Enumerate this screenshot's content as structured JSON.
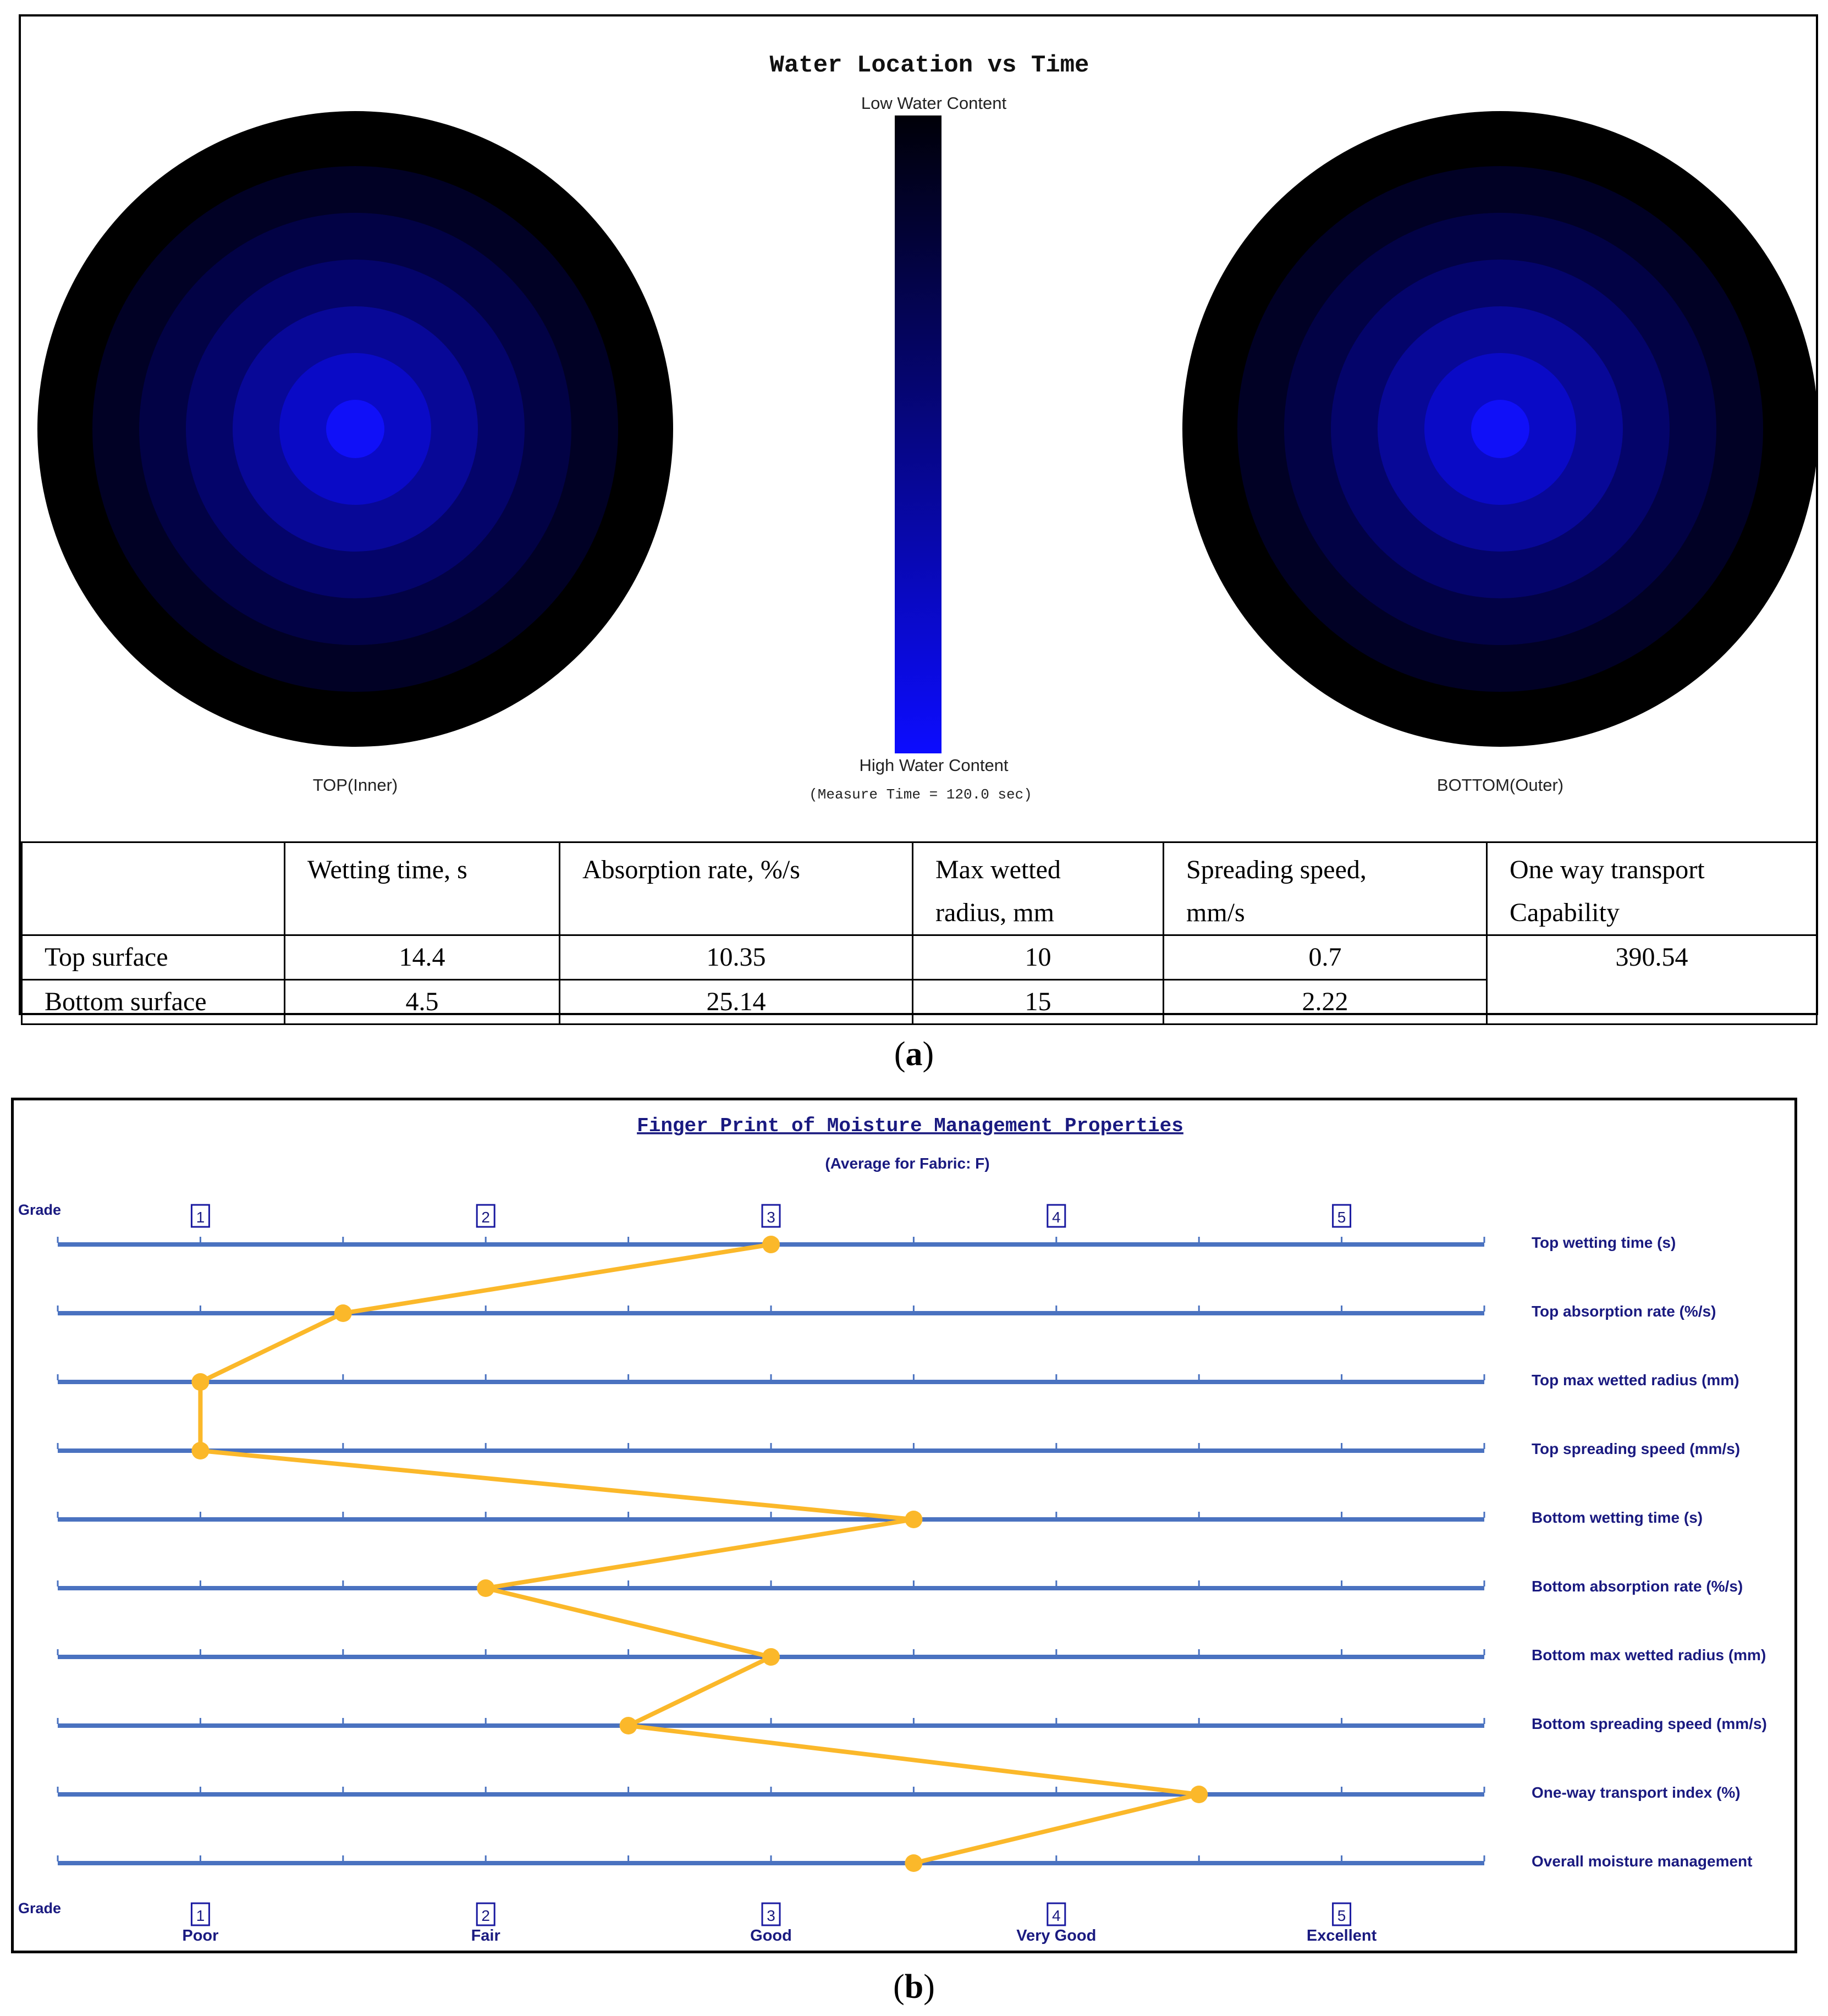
{
  "panel_a": {
    "label_open": "(",
    "label_letter": "a",
    "label_close": ")",
    "title": "Water Location vs Time",
    "legend_top": "Low Water Content",
    "legend_bottom": "High Water Content",
    "measure_time": "(Measure Time = 120.0 sec)",
    "left_map_label": "TOP(Inner)",
    "right_map_label": "BOTTOM(Outer)",
    "ring_colors_outer_to_inner": [
      "#000000",
      "#010125",
      "#020245",
      "#04046a",
      "#080897",
      "#0a0ac6",
      "#1010f8"
    ],
    "legend_color_low": "#000008",
    "legend_color_high": "#0c0cff"
  },
  "table": {
    "headers": [
      [
        "",
        ""
      ],
      [
        "Wetting time, s",
        ""
      ],
      [
        "Absorption rate, %/s",
        ""
      ],
      [
        "Max wetted",
        "radius, mm"
      ],
      [
        "Spreading speed,",
        "mm/s"
      ],
      [
        "One way transport",
        "Capability"
      ]
    ],
    "rows": [
      {
        "label": "Top surface",
        "values": [
          "14.4",
          "10.35",
          "10",
          "0.7"
        ]
      },
      {
        "label": "Bottom surface",
        "values": [
          "4.5",
          "25.14",
          "15",
          "2.22"
        ]
      }
    ],
    "one_way_value": "390.54"
  },
  "panel_b": {
    "label_open": "(",
    "label_letter": "b",
    "label_close": ")"
  },
  "chart_data": {
    "type": "line",
    "title": "Finger Print of Moisture Management Properties",
    "subtitle": "(Average for Fabric: F)",
    "axis_label": "Grade",
    "grades": [
      "1",
      "2",
      "3",
      "4",
      "5"
    ],
    "grade_descriptions": [
      "Poor",
      "Fair",
      "Good",
      "Very Good",
      "Excellent"
    ],
    "xlim": [
      0.5,
      5.5
    ],
    "categories": [
      "Top wetting time (s)",
      "Top absorption rate (%/s)",
      "Top max wetted radius (mm)",
      "Top spreading speed (mm/s)",
      "Bottom wetting time (s)",
      "Bottom absorption rate (%/s)",
      "Bottom max wetted radius (mm)",
      "Bottom spreading speed (mm/s)",
      "One-way transport index (%)",
      "Overall moisture management"
    ],
    "values": [
      3,
      1.5,
      1,
      1,
      3.5,
      2,
      3,
      2.5,
      4.5,
      3.5
    ],
    "line_color": "#fbb82a",
    "axis_color": "#4a72c0",
    "text_color": "#1a1a80"
  }
}
